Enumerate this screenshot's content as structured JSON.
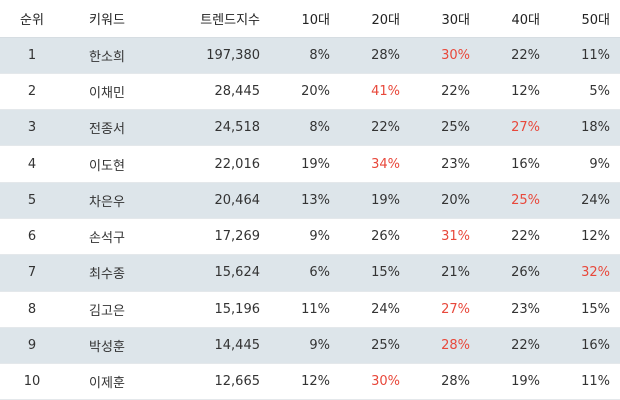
{
  "headers": [
    "순위",
    "키워드",
    "트렌드지수",
    "10대",
    "20대",
    "30대",
    "40대",
    "50대"
  ],
  "rows": [
    {
      "rank": "1",
      "keyword": "한소희",
      "index": "197,380",
      "ages": [
        "8%",
        "28%",
        "30%",
        "22%",
        "11%"
      ],
      "hot": 2
    },
    {
      "rank": "2",
      "keyword": "이채민",
      "index": "28,445",
      "ages": [
        "20%",
        "41%",
        "22%",
        "12%",
        "5%"
      ],
      "hot": 1
    },
    {
      "rank": "3",
      "keyword": "전종서",
      "index": "24,518",
      "ages": [
        "8%",
        "22%",
        "25%",
        "27%",
        "18%"
      ],
      "hot": 3
    },
    {
      "rank": "4",
      "keyword": "이도현",
      "index": "22,016",
      "ages": [
        "19%",
        "34%",
        "23%",
        "16%",
        "9%"
      ],
      "hot": 1
    },
    {
      "rank": "5",
      "keyword": "차은우",
      "index": "20,464",
      "ages": [
        "13%",
        "19%",
        "20%",
        "25%",
        "24%"
      ],
      "hot": 3
    },
    {
      "rank": "6",
      "keyword": "손석구",
      "index": "17,269",
      "ages": [
        "9%",
        "26%",
        "31%",
        "22%",
        "12%"
      ],
      "hot": 2
    },
    {
      "rank": "7",
      "keyword": "최수종",
      "index": "15,624",
      "ages": [
        "6%",
        "15%",
        "21%",
        "26%",
        "32%"
      ],
      "hot": 4
    },
    {
      "rank": "8",
      "keyword": "김고은",
      "index": "15,196",
      "ages": [
        "11%",
        "24%",
        "27%",
        "23%",
        "15%"
      ],
      "hot": 2
    },
    {
      "rank": "9",
      "keyword": "박성훈",
      "index": "14,445",
      "ages": [
        "9%",
        "25%",
        "28%",
        "22%",
        "16%"
      ],
      "hot": 2
    },
    {
      "rank": "10",
      "keyword": "이제훈",
      "index": "12,665",
      "ages": [
        "12%",
        "30%",
        "28%",
        "19%",
        "11%"
      ],
      "hot": 1
    }
  ],
  "colors": {
    "highlight": "#e8483b",
    "stripe": "#dde5ea",
    "text": "#333333"
  }
}
